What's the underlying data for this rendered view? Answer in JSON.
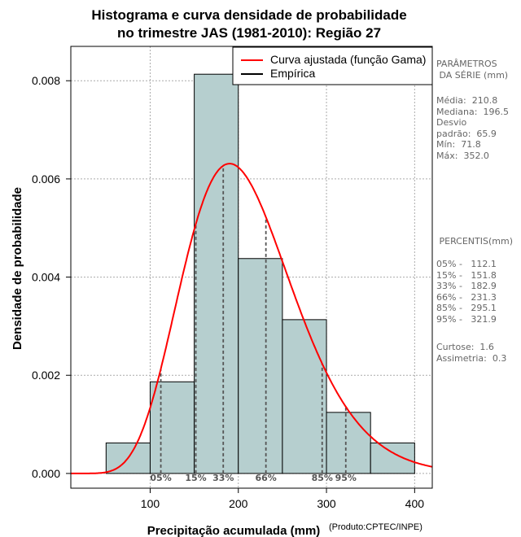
{
  "chart_data": {
    "type": "bar",
    "title": [
      "Histograma e curva densidade de probabilidade",
      "no trimestre JAS (1981-2010): Região 27"
    ],
    "xlabel": "Precipitação acumulada (mm)",
    "ylabel": "Densidade de probabilidade",
    "credit": "(Produto:CPTEC/INPE)",
    "xlim": [
      10,
      420
    ],
    "ylim": [
      -0.0003,
      0.0087
    ],
    "xticks": [
      "100",
      "200",
      "300",
      "400"
    ],
    "xtick_values": [
      100,
      200,
      300,
      400
    ],
    "yticks": [
      "0.000",
      "0.002",
      "0.004",
      "0.006",
      "0.008"
    ],
    "ytick_values": [
      0,
      0.002,
      0.004,
      0.006,
      0.008
    ],
    "grid": true,
    "legend": {
      "position": "top-right",
      "entries": [
        {
          "label": "Curva ajustada (função Gama)",
          "color": "#ff0000"
        },
        {
          "label": "Empírica",
          "color": "#000000"
        }
      ]
    },
    "histogram": {
      "bin_edges": [
        50,
        100,
        150,
        200,
        250,
        300,
        350,
        400
      ],
      "densities": [
        0.000622,
        0.001867,
        0.008133,
        0.004378,
        0.003133,
        0.001244,
        0.000622
      ],
      "fill": "#b6cfcf"
    },
    "gamma_fit": {
      "shape": 10.21,
      "scale": 20.64,
      "color": "#ff0000"
    },
    "percentile_lines": [
      {
        "label": "05%",
        "value": 112.1
      },
      {
        "label": "15%",
        "value": 151.8
      },
      {
        "label": "33%",
        "value": 182.9
      },
      {
        "label": "66%",
        "value": 231.3
      },
      {
        "label": "85%",
        "value": 295.1
      },
      {
        "label": "95%",
        "value": 321.9
      }
    ]
  },
  "side_panel": {
    "params_title": "PARÂMETROS\n DA SÉRIE (mm)",
    "params_body": "Média:  210.8\nMediana:  196.5\nDesvio\npadrão:  65.9\nMín:  71.8\nMáx:  352.0",
    "percentis_title": " PERCENTIS(mm)",
    "percentis_body": "05% -   112.1\n15% -   151.8\n33% -   182.9\n66% -   231.3\n85% -   295.1\n95% -   321.9",
    "stats_body": "Curtose:  1.6\nAssimetria:  0.3"
  }
}
